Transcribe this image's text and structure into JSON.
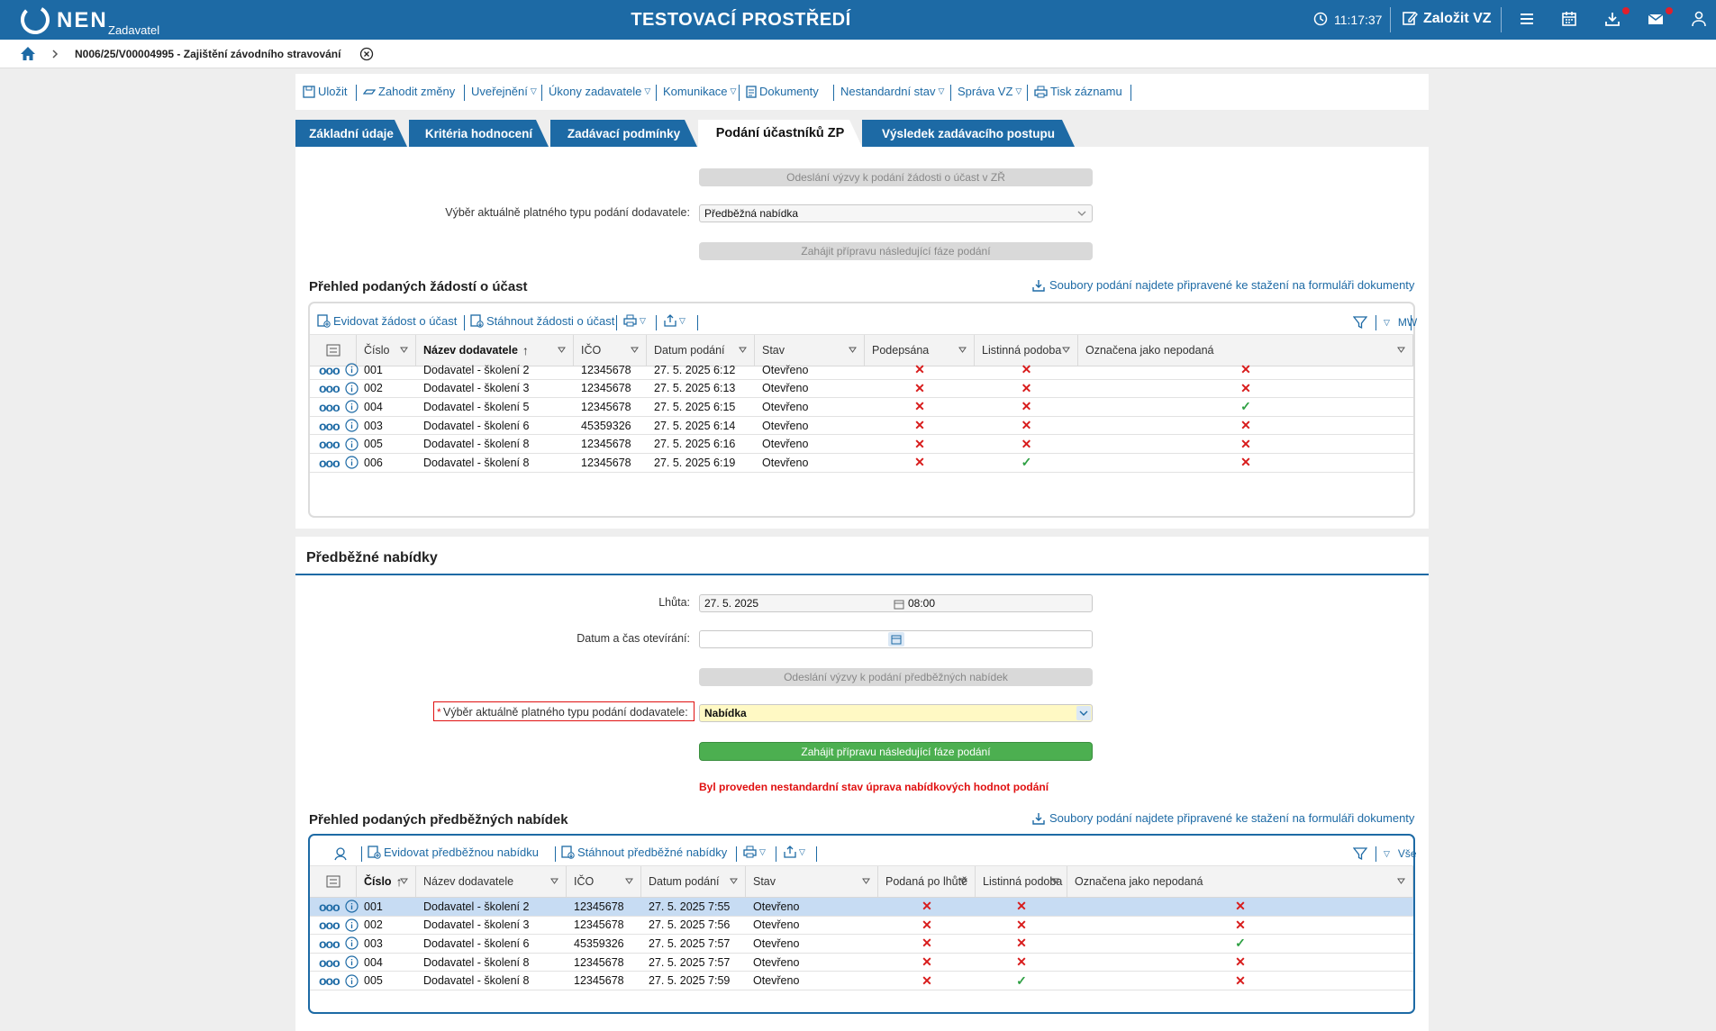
{
  "header": {
    "logo_text": "NEN",
    "logo_sub": "Zadavatel",
    "title": "TESTOVACÍ PROSTŘEDÍ",
    "time": "11:17:37",
    "zalozit": "Založit VZ"
  },
  "breadcrumb": {
    "text": "N006/25/V00004995 - Zajištění závodního stravování"
  },
  "toolbar": {
    "items": [
      "Uložit",
      "Zahodit změny",
      "Uveřejnění",
      "Úkony zadavatele",
      "Komunikace",
      "Dokumenty",
      "Nestandardní stav",
      "Správa VZ",
      "Tisk záznamu"
    ]
  },
  "tabs": [
    "Základní údaje",
    "Kritéria hodnocení",
    "Zadávací podmínky",
    "Podání účastníků ZP",
    "Výsledek zadávacího postupu"
  ],
  "section1": {
    "btn_odeslani": "Odeslání výzvy k podání žádosti o účast v ZŘ",
    "label_vyber": "Výběr aktuálně platného typu podání dodavatele:",
    "value_vyber": "Předběžná nabídka",
    "btn_zahajit": "Zahájit přípravu následující fáze podání",
    "grid_title": "Přehled podaných žádostí o účast",
    "soubory_link": "Soubory podání najdete připravené ke stažení na formuláři dokumenty",
    "tool_evidovat": "Evidovat žádost o účast",
    "tool_stahnout": "Stáhnout žádosti o účast",
    "tool_mw": "MW",
    "columns": [
      "Číslo",
      "Název dodavatele",
      "IČO",
      "Datum podání",
      "Stav",
      "Podepsána",
      "Listinná podoba",
      "Označena jako nepodaná"
    ],
    "rows": [
      {
        "cislo": "001",
        "nazev": "Dodavatel - školení 2",
        "ico": "12345678",
        "datum": "27. 5. 2025 6:12",
        "stav": "Otevřeno",
        "c1": "✕",
        "c2": "✕",
        "c3": "✕"
      },
      {
        "cislo": "002",
        "nazev": "Dodavatel - školení 3",
        "ico": "12345678",
        "datum": "27. 5. 2025 6:13",
        "stav": "Otevřeno",
        "c1": "✕",
        "c2": "✕",
        "c3": "✕"
      },
      {
        "cislo": "004",
        "nazev": "Dodavatel - školení 5",
        "ico": "12345678",
        "datum": "27. 5. 2025 6:15",
        "stav": "Otevřeno",
        "c1": "✕",
        "c2": "✕",
        "c3": "✓"
      },
      {
        "cislo": "003",
        "nazev": "Dodavatel - školení 6",
        "ico": "45359326",
        "datum": "27. 5. 2025 6:14",
        "stav": "Otevřeno",
        "c1": "✕",
        "c2": "✕",
        "c3": "✕"
      },
      {
        "cislo": "005",
        "nazev": "Dodavatel - školení 8",
        "ico": "12345678",
        "datum": "27. 5. 2025 6:16",
        "stav": "Otevřeno",
        "c1": "✕",
        "c2": "✕",
        "c3": "✕"
      },
      {
        "cislo": "006",
        "nazev": "Dodavatel - školení 8",
        "ico": "12345678",
        "datum": "27. 5. 2025 6:19",
        "stav": "Otevřeno",
        "c1": "✕",
        "c2": "✓",
        "c3": "✕"
      }
    ]
  },
  "section2": {
    "title": "Předběžné nabídky",
    "label_lhuta": "Lhůta:",
    "lhuta_date": "27. 5. 2025",
    "lhuta_time": "08:00",
    "label_otevirani": "Datum a čas otevírání:",
    "btn_odeslani": "Odeslání výzvy k podání předběžných nabídek",
    "required_mark": "*",
    "label_vyber": "Výběr aktuálně platného typu podání dodavatele:",
    "value_vyber": "Nabídka",
    "btn_zahajit": "Zahájit přípravu následující fáze podání",
    "warning": "Byl proveden nestandardní stav úprava nabídkových hodnot podání",
    "grid_title": "Přehled podaných předběžných nabídek",
    "soubory_link": "Soubory podání najdete připravené ke stažení na formuláři dokumenty",
    "tool_evidovat": "Evidovat předběžnou nabídku",
    "tool_stahnout": "Stáhnout předběžné nabídky",
    "tool_vse": "Vše",
    "columns": [
      "Číslo",
      "Název dodavatele",
      "IČO",
      "Datum podání",
      "Stav",
      "Podaná po lhůtě",
      "Listinná podoba",
      "Označena jako nepodaná"
    ],
    "rows": [
      {
        "cislo": "001",
        "nazev": "Dodavatel - školení 2",
        "ico": "12345678",
        "datum": "27. 5. 2025 7:55",
        "stav": "Otevřeno",
        "c1": "✕",
        "c2": "✕",
        "c3": "✕"
      },
      {
        "cislo": "002",
        "nazev": "Dodavatel - školení 3",
        "ico": "12345678",
        "datum": "27. 5. 2025 7:56",
        "stav": "Otevřeno",
        "c1": "✕",
        "c2": "✕",
        "c3": "✕"
      },
      {
        "cislo": "003",
        "nazev": "Dodavatel - školení 6",
        "ico": "45359326",
        "datum": "27. 5. 2025 7:57",
        "stav": "Otevřeno",
        "c1": "✕",
        "c2": "✕",
        "c3": "✓"
      },
      {
        "cislo": "004",
        "nazev": "Dodavatel - školení 8",
        "ico": "12345678",
        "datum": "27. 5. 2025 7:57",
        "stav": "Otevřeno",
        "c1": "✕",
        "c2": "✕",
        "c3": "✕"
      },
      {
        "cislo": "005",
        "nazev": "Dodavatel - školení 8",
        "ico": "12345678",
        "datum": "27. 5. 2025 7:59",
        "stav": "Otevřeno",
        "c1": "✕",
        "c2": "✓",
        "c3": "✕"
      }
    ]
  },
  "colors": {
    "brand": "#1d6aa5",
    "green": "#4caf50",
    "red": "#d81b1b",
    "ok": "#2ea043",
    "selected_row": "#c7dcf3",
    "required_field": "#fff9c4"
  }
}
